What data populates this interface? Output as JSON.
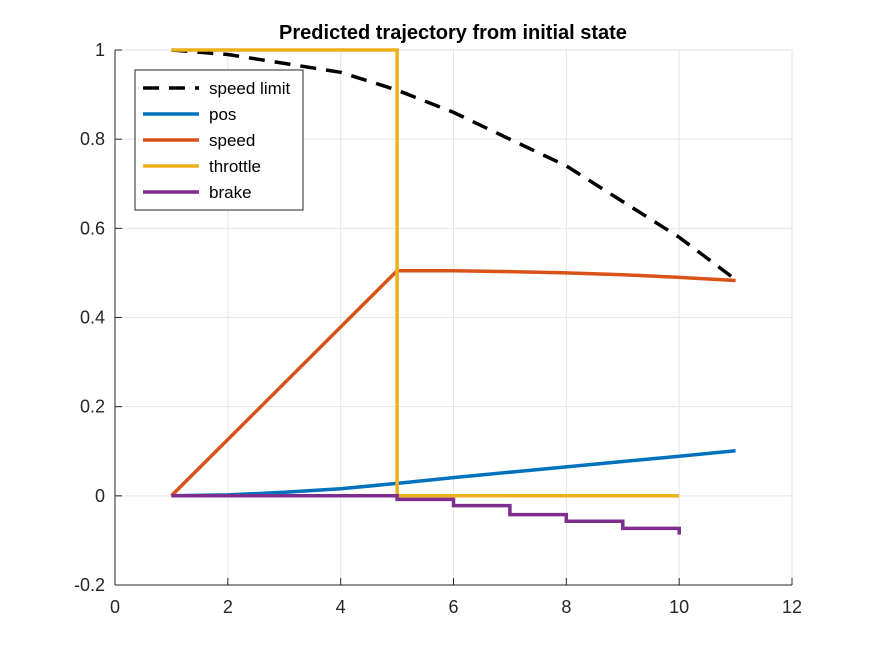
{
  "chart_data": {
    "type": "line",
    "title": "Predicted trajectory from initial state",
    "xlabel": "",
    "ylabel": "",
    "xlim": [
      0,
      12
    ],
    "ylim": [
      -0.2,
      1
    ],
    "xticks": [
      0,
      2,
      4,
      6,
      8,
      10,
      12
    ],
    "xtick_labels": [
      "0",
      "2",
      "4",
      "6",
      "8",
      "10",
      "12"
    ],
    "yticks": [
      -0.2,
      0,
      0.2,
      0.4,
      0.6,
      0.8,
      1
    ],
    "ytick_labels": [
      "-0.2",
      "0",
      "0.2",
      "0.4",
      "0.6",
      "0.8",
      "1"
    ],
    "grid": true,
    "legend_position": "top-left",
    "series": [
      {
        "name": "speed limit",
        "color": "#000000",
        "style": "dashed",
        "x": [
          1,
          2,
          3,
          4,
          5,
          6,
          7,
          8,
          9,
          10,
          11
        ],
        "y": [
          1.0,
          0.99,
          0.97,
          0.95,
          0.91,
          0.86,
          0.8,
          0.74,
          0.66,
          0.58,
          0.485
        ]
      },
      {
        "name": "pos",
        "color": "#0072BD",
        "style": "solid",
        "x": [
          1,
          2,
          3,
          4,
          5,
          6,
          7,
          8,
          9,
          10,
          11
        ],
        "y": [
          0,
          0.002,
          0.008,
          0.016,
          0.028,
          0.041,
          0.053,
          0.065,
          0.077,
          0.089,
          0.101
        ]
      },
      {
        "name": "speed",
        "color": "#D95319",
        "style": "solid",
        "x": [
          1,
          5,
          6,
          7,
          8,
          9,
          10,
          11
        ],
        "y": [
          0,
          0.505,
          0.505,
          0.503,
          0.5,
          0.496,
          0.49,
          0.483
        ]
      },
      {
        "name": "throttle",
        "color": "#EDB120",
        "style": "stairs",
        "x": [
          1,
          2,
          3,
          4,
          5,
          6,
          7,
          8,
          9,
          10
        ],
        "y": [
          1,
          1,
          1,
          1,
          0,
          0,
          0,
          0,
          0,
          0
        ]
      },
      {
        "name": "brake",
        "color": "#7E2F8E",
        "style": "stairs",
        "x": [
          1,
          2,
          3,
          4,
          5,
          6,
          7,
          8,
          9,
          10
        ],
        "y": [
          0,
          0,
          0,
          0,
          -0.008,
          -0.022,
          -0.042,
          -0.057,
          -0.073,
          -0.087
        ]
      }
    ]
  }
}
